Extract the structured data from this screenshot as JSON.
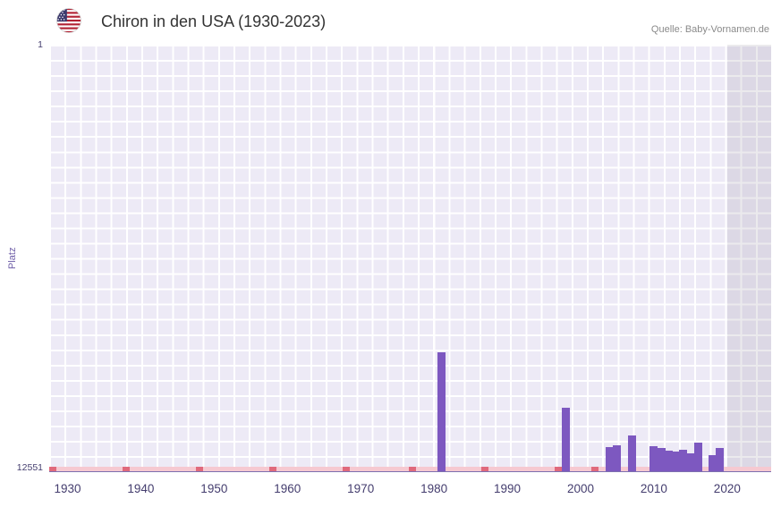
{
  "header": {
    "title": "Chiron in den USA (1930-2023)",
    "source": "Quelle: Baby-Vornamen.de"
  },
  "chart_data": {
    "type": "bar",
    "title": "Chiron in den USA (1930-2023)",
    "xlabel": "",
    "ylabel": "Platz",
    "legend": "none",
    "grid": true,
    "y_axis": {
      "top_label": "1",
      "bottom_label": "12551",
      "best_rank": 1,
      "worst_rank": 12551,
      "inverted": true
    },
    "x_axis": {
      "min": 1927.5,
      "max": 2026,
      "ticks": [
        1930,
        1940,
        1950,
        1960,
        1970,
        1980,
        1990,
        2000,
        2010,
        2020
      ]
    },
    "bars": [
      {
        "year": 1981,
        "rank": 9051
      },
      {
        "year": 1998,
        "rank": 10683
      },
      {
        "year": 2004,
        "rank": 11840
      },
      {
        "year": 2005,
        "rank": 11787
      },
      {
        "year": 2007,
        "rank": 11498
      },
      {
        "year": 2010,
        "rank": 11814
      },
      {
        "year": 2011,
        "rank": 11866
      },
      {
        "year": 2012,
        "rank": 11945
      },
      {
        "year": 2013,
        "rank": 11972
      },
      {
        "year": 2014,
        "rank": 11919
      },
      {
        "year": 2015,
        "rank": 12024
      },
      {
        "year": 2016,
        "rank": 11708
      },
      {
        "year": 2018,
        "rank": 12077
      },
      {
        "year": 2019,
        "rank": 11866
      }
    ],
    "no_data_marker_years": [
      1928,
      1938,
      1948,
      1958,
      1968,
      1977,
      1987,
      1997,
      2002
    ],
    "recent_band": {
      "from": 2020,
      "to": 2026
    },
    "colors": {
      "bar": "#7d58c0",
      "plot_bg": "#edeaf6",
      "grid_line": "#ffffff",
      "band_tint": "rgba(128,126,140,0.16)",
      "baseline": "#f6c9d1",
      "baseline_marker": "#e0697c",
      "axis_line": "#7e6fb0",
      "tick_label": "#443d6e",
      "title": "#333333",
      "source": "#8a8a8a"
    }
  }
}
